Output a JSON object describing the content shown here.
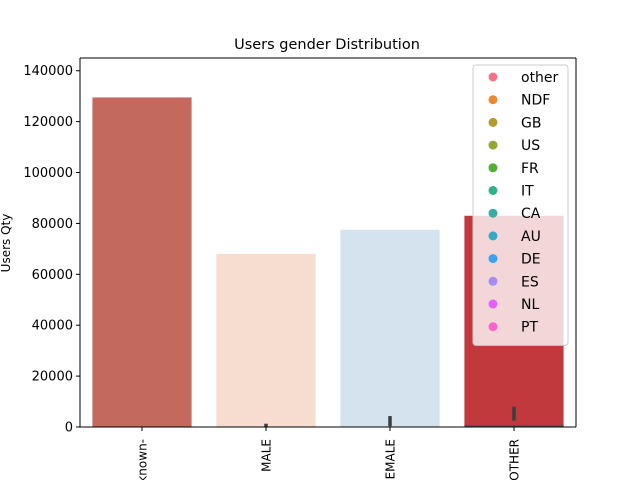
{
  "chart_data": {
    "type": "bar",
    "title": "Users gender Distribution",
    "xlabel": "",
    "ylabel": "Users Qty",
    "ylim": [
      0,
      145000
    ],
    "yticks": [
      0,
      20000,
      40000,
      60000,
      80000,
      100000,
      120000,
      140000
    ],
    "categories": [
      "-unknown-",
      "MALE",
      "FEMALE",
      "OTHER"
    ],
    "values": [
      129500,
      68000,
      77500,
      83000
    ],
    "bar_colors": [
      "#c4695d",
      "#f7ddd0",
      "#d4e3ee",
      "#c1393d"
    ],
    "error_bars": [
      {
        "category": "MALE",
        "low": 0,
        "high": 1300
      },
      {
        "category": "FEMALE",
        "low": 300,
        "high": 4300
      },
      {
        "category": "OTHER",
        "low": 2500,
        "high": 8000
      }
    ],
    "legend": {
      "placement": "top-right",
      "entries": [
        {
          "label": "other",
          "color": "#f77189"
        },
        {
          "label": "NDF",
          "color": "#e98933"
        },
        {
          "label": "GB",
          "color": "#b39a31"
        },
        {
          "label": "US",
          "color": "#92a632"
        },
        {
          "label": "FR",
          "color": "#50b131"
        },
        {
          "label": "IT",
          "color": "#33b08a"
        },
        {
          "label": "CA",
          "color": "#36ada4"
        },
        {
          "label": "AU",
          "color": "#38a9c5"
        },
        {
          "label": "DE",
          "color": "#3ba3ec"
        },
        {
          "label": "ES",
          "color": "#a48cf4"
        },
        {
          "label": "NL",
          "color": "#e95ef4"
        },
        {
          "label": "PT",
          "color": "#f565cc"
        }
      ]
    },
    "grid": false
  }
}
